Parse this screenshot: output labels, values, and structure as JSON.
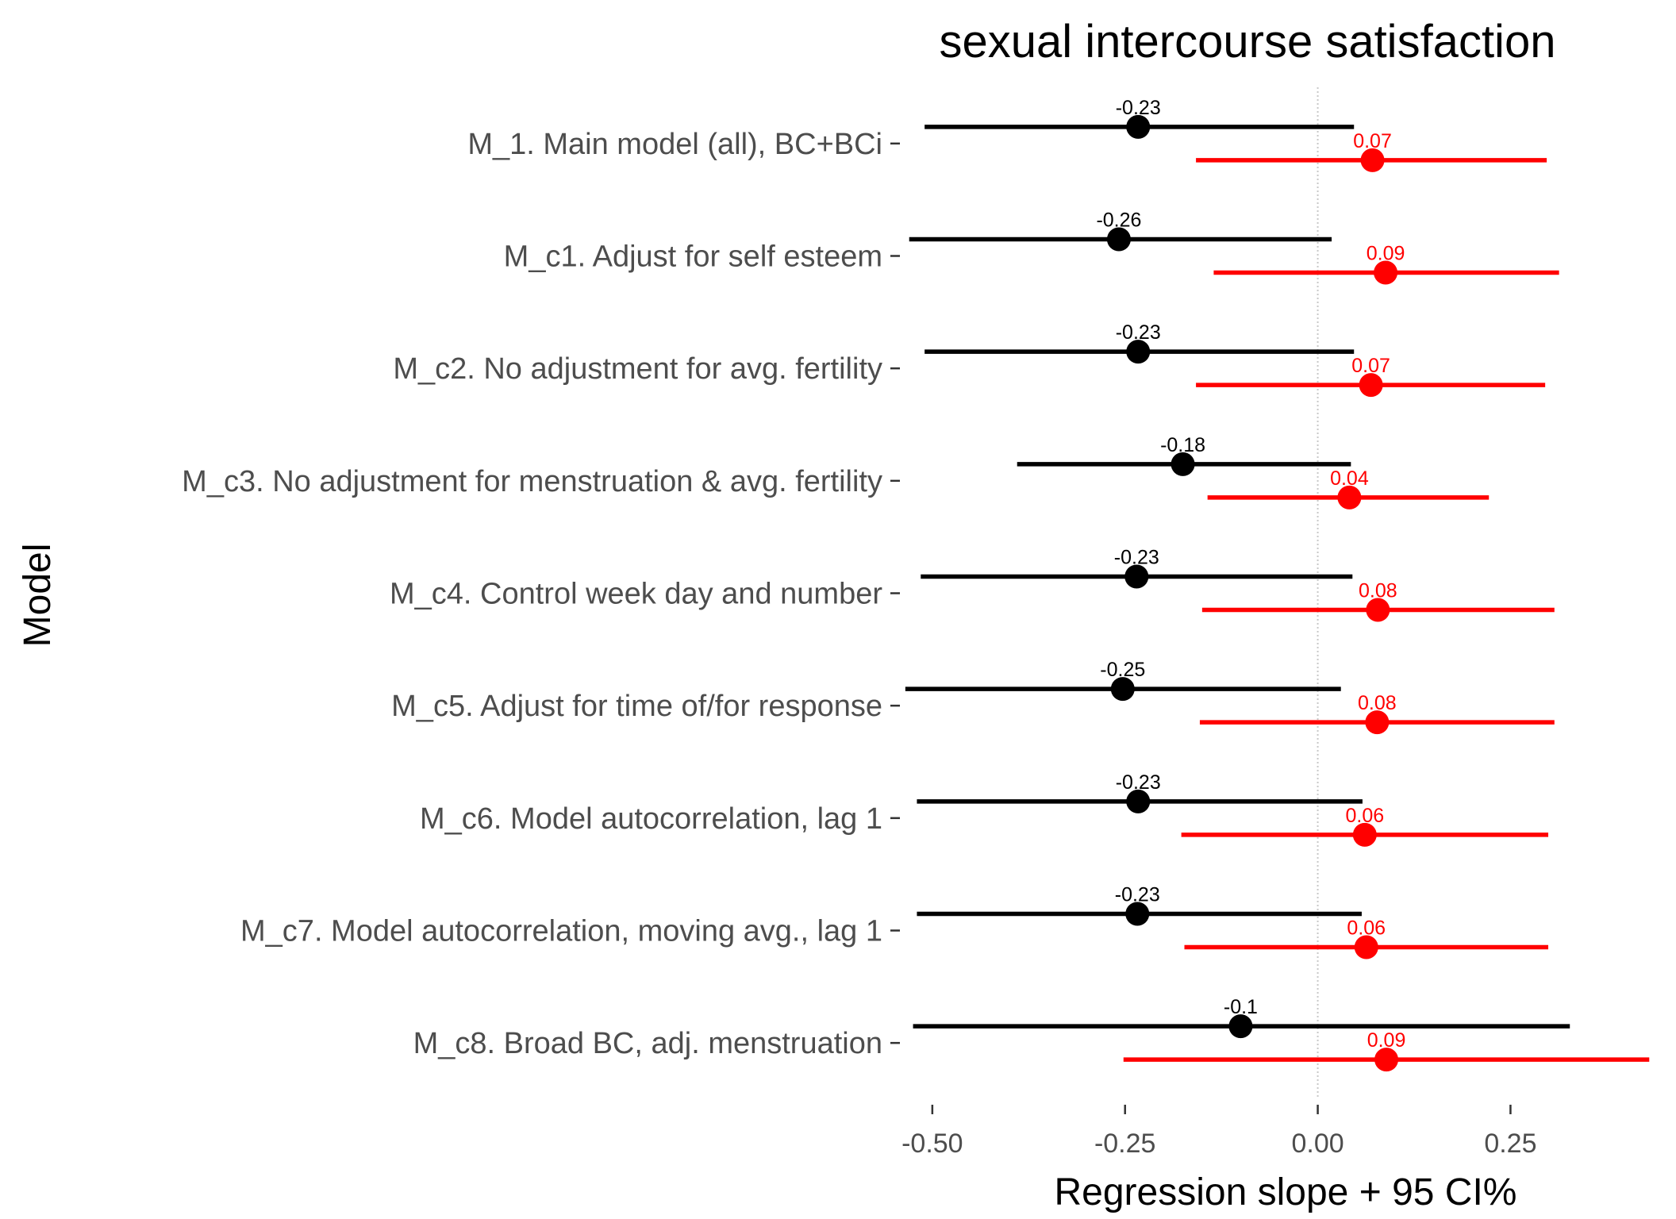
{
  "chart_data": {
    "type": "forest",
    "title": "sexual intercourse satisfaction",
    "xlabel": "Regression slope + 95 CI%",
    "ylabel": "Model",
    "xlim": [
      -0.54,
      0.44
    ],
    "x_ticks": [
      {
        "value": -0.5,
        "label": "-0.50"
      },
      {
        "value": -0.25,
        "label": "-0.25"
      },
      {
        "value": 0.0,
        "label": "0.00"
      },
      {
        "value": 0.25,
        "label": "0.25"
      }
    ],
    "reference_line": 0,
    "grid": false,
    "colors": {
      "black_series": "#000000",
      "red_series": "#ff0000",
      "reference": "#c8c8c8"
    },
    "models": [
      "M_1. Main model (all), BC+BCi",
      "M_c1. Adjust for self esteem",
      "M_c2. No adjustment for avg. fertility",
      "M_c3. No adjustment for menstruation & avg. fertility",
      "M_c4. Control week day and number",
      "M_c5. Adjust for time of/for response",
      "M_c6. Model autocorrelation, lag 1",
      "M_c7. Model autocorrelation, moving avg., lag 1",
      "M_c8. Broad BC, adj. menstruation"
    ],
    "series": [
      {
        "color": "#000000",
        "estimates": [
          -0.233,
          -0.258,
          -0.233,
          -0.175,
          -0.235,
          -0.253,
          -0.233,
          -0.234,
          -0.1
        ],
        "lower": [
          -0.51,
          -0.53,
          -0.51,
          -0.39,
          -0.515,
          -0.535,
          -0.52,
          -0.52,
          -0.525
        ],
        "upper": [
          0.047,
          0.018,
          0.047,
          0.043,
          0.045,
          0.03,
          0.058,
          0.057,
          0.327
        ],
        "labels": [
          "-0.23",
          "-0.26",
          "-0.23",
          "-0.18",
          "-0.23",
          "-0.25",
          "-0.23",
          "-0.23",
          "-0.1"
        ]
      },
      {
        "color": "#ff0000",
        "estimates": [
          0.071,
          0.088,
          0.069,
          0.041,
          0.078,
          0.077,
          0.061,
          0.063,
          0.089
        ],
        "lower": [
          -0.158,
          -0.135,
          -0.158,
          -0.143,
          -0.15,
          -0.153,
          -0.177,
          -0.173,
          -0.252
        ],
        "upper": [
          0.297,
          0.313,
          0.295,
          0.222,
          0.307,
          0.307,
          0.299,
          0.299,
          0.43
        ],
        "labels": [
          "0.07",
          "0.09",
          "0.07",
          "0.04",
          "0.08",
          "0.08",
          "0.06",
          "0.06",
          "0.09"
        ]
      }
    ]
  }
}
